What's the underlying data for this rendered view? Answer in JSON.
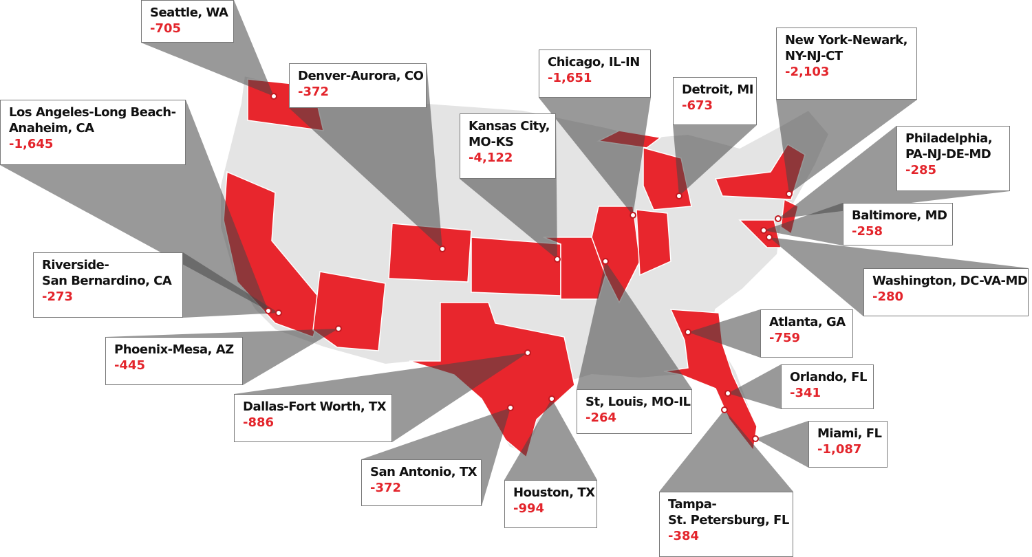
{
  "callouts": [
    {
      "name": [
        "Seattle, WA"
      ],
      "value": "-705"
    },
    {
      "name": [
        "Denver-Aurora, CO"
      ],
      "value": "-372"
    },
    {
      "name": [
        "Los Angeles-Long Beach-",
        "Anaheim, CA"
      ],
      "value": "-1,645"
    },
    {
      "name": [
        "Kansas City,",
        "MO-KS"
      ],
      "value": "-4,122"
    },
    {
      "name": [
        "Chicago, IL-IN"
      ],
      "value": "-1,651"
    },
    {
      "name": [
        "Detroit, MI"
      ],
      "value": "-673"
    },
    {
      "name": [
        "New York-Newark,",
        "NY-NJ-CT"
      ],
      "value": "-2,103"
    },
    {
      "name": [
        "Philadelphia,",
        "PA-NJ-DE-MD"
      ],
      "value": "-285"
    },
    {
      "name": [
        "Baltimore, MD"
      ],
      "value": "-258"
    },
    {
      "name": [
        "Washington, DC-VA-MD"
      ],
      "value": "-280"
    },
    {
      "name": [
        "Atlanta, GA"
      ],
      "value": "-759"
    },
    {
      "name": [
        "Orlando, FL"
      ],
      "value": "-341"
    },
    {
      "name": [
        "Miami, FL"
      ],
      "value": "-1,087"
    },
    {
      "name": [
        "Tampa-",
        "St. Petersburg, FL"
      ],
      "value": "-384"
    },
    {
      "name": [
        "St, Louis, MO-IL"
      ],
      "value": "-264"
    },
    {
      "name": [
        "Houston, TX"
      ],
      "value": "-994"
    },
    {
      "name": [
        "San Antonio, TX"
      ],
      "value": "-372"
    },
    {
      "name": [
        "Dallas-Fort Worth, TX"
      ],
      "value": "-886"
    },
    {
      "name": [
        "Phoenix-Mesa, AZ"
      ],
      "value": "-445"
    },
    {
      "name": [
        "Riverside-",
        "San Bernardino, CA"
      ],
      "value": "-273"
    }
  ]
}
